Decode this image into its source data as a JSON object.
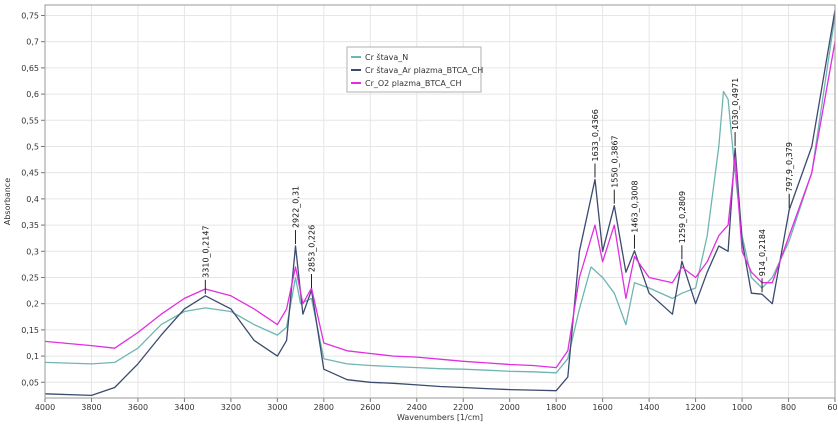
{
  "chart_data": {
    "type": "line",
    "xlabel": "Wavenumbers [1/cm]",
    "ylabel": "Absorbance",
    "xlim": [
      4000,
      600
    ],
    "ylim": [
      0.02,
      0.77
    ],
    "x_ticks": [
      "4000",
      "3800",
      "3600",
      "3400",
      "3200",
      "3000",
      "2800",
      "2600",
      "2400",
      "2200",
      "2000",
      "1800",
      "1600",
      "1400",
      "1200",
      "1000",
      "800",
      "600"
    ],
    "y_ticks": [
      "0,05",
      "0,1",
      "0,15",
      "0,2",
      "0,25",
      "0,3",
      "0,35",
      "0,4",
      "0,45",
      "0,5",
      "0,55",
      "0,6",
      "0,65",
      "0,7",
      "0,75"
    ],
    "legend_position": "top-center",
    "grid": true,
    "series": [
      {
        "name": "Cr štava_N",
        "color": "#6fb5b3",
        "points": [
          [
            4000,
            0.088
          ],
          [
            3800,
            0.085
          ],
          [
            3700,
            0.088
          ],
          [
            3600,
            0.115
          ],
          [
            3500,
            0.16
          ],
          [
            3400,
            0.185
          ],
          [
            3310,
            0.192
          ],
          [
            3200,
            0.185
          ],
          [
            3100,
            0.16
          ],
          [
            3000,
            0.14
          ],
          [
            2960,
            0.155
          ],
          [
            2922,
            0.25
          ],
          [
            2900,
            0.2
          ],
          [
            2853,
            0.21
          ],
          [
            2800,
            0.095
          ],
          [
            2700,
            0.085
          ],
          [
            2600,
            0.082
          ],
          [
            2500,
            0.08
          ],
          [
            2400,
            0.078
          ],
          [
            2300,
            0.076
          ],
          [
            2200,
            0.075
          ],
          [
            2100,
            0.073
          ],
          [
            2000,
            0.071
          ],
          [
            1900,
            0.07
          ],
          [
            1800,
            0.068
          ],
          [
            1750,
            0.095
          ],
          [
            1700,
            0.19
          ],
          [
            1650,
            0.27
          ],
          [
            1600,
            0.25
          ],
          [
            1550,
            0.22
          ],
          [
            1500,
            0.16
          ],
          [
            1463,
            0.24
          ],
          [
            1400,
            0.23
          ],
          [
            1300,
            0.21
          ],
          [
            1259,
            0.22
          ],
          [
            1200,
            0.23
          ],
          [
            1150,
            0.33
          ],
          [
            1100,
            0.5
          ],
          [
            1080,
            0.605
          ],
          [
            1060,
            0.59
          ],
          [
            1030,
            0.45
          ],
          [
            1000,
            0.33
          ],
          [
            960,
            0.25
          ],
          [
            914,
            0.23
          ],
          [
            870,
            0.25
          ],
          [
            797,
            0.32
          ],
          [
            700,
            0.45
          ],
          [
            600,
            0.75
          ]
        ]
      },
      {
        "name": "Cr štava_Ar plazma_BTCA_CH",
        "color": "#3b4a6e",
        "points": [
          [
            4000,
            0.028
          ],
          [
            3800,
            0.025
          ],
          [
            3700,
            0.04
          ],
          [
            3600,
            0.085
          ],
          [
            3500,
            0.14
          ],
          [
            3400,
            0.19
          ],
          [
            3310,
            0.215
          ],
          [
            3200,
            0.19
          ],
          [
            3100,
            0.13
          ],
          [
            3000,
            0.1
          ],
          [
            2960,
            0.13
          ],
          [
            2922,
            0.31
          ],
          [
            2890,
            0.18
          ],
          [
            2853,
            0.226
          ],
          [
            2800,
            0.075
          ],
          [
            2700,
            0.055
          ],
          [
            2600,
            0.05
          ],
          [
            2500,
            0.048
          ],
          [
            2400,
            0.045
          ],
          [
            2300,
            0.042
          ],
          [
            2200,
            0.04
          ],
          [
            2100,
            0.038
          ],
          [
            2000,
            0.036
          ],
          [
            1900,
            0.035
          ],
          [
            1800,
            0.034
          ],
          [
            1750,
            0.06
          ],
          [
            1700,
            0.3
          ],
          [
            1633,
            0.437
          ],
          [
            1600,
            0.3
          ],
          [
            1550,
            0.387
          ],
          [
            1500,
            0.26
          ],
          [
            1463,
            0.301
          ],
          [
            1400,
            0.22
          ],
          [
            1300,
            0.18
          ],
          [
            1259,
            0.281
          ],
          [
            1200,
            0.2
          ],
          [
            1150,
            0.26
          ],
          [
            1100,
            0.31
          ],
          [
            1060,
            0.3
          ],
          [
            1030,
            0.497
          ],
          [
            1000,
            0.32
          ],
          [
            960,
            0.22
          ],
          [
            914,
            0.218
          ],
          [
            870,
            0.2
          ],
          [
            797,
            0.379
          ],
          [
            700,
            0.5
          ],
          [
            600,
            0.76
          ]
        ]
      },
      {
        "name": "Cr_O2 plazma_BTCA_CH",
        "color": "#e02fe0",
        "points": [
          [
            4000,
            0.128
          ],
          [
            3800,
            0.12
          ],
          [
            3700,
            0.115
          ],
          [
            3600,
            0.145
          ],
          [
            3500,
            0.18
          ],
          [
            3400,
            0.21
          ],
          [
            3310,
            0.228
          ],
          [
            3200,
            0.215
          ],
          [
            3100,
            0.19
          ],
          [
            3000,
            0.16
          ],
          [
            2960,
            0.19
          ],
          [
            2922,
            0.27
          ],
          [
            2890,
            0.2
          ],
          [
            2853,
            0.23
          ],
          [
            2800,
            0.125
          ],
          [
            2700,
            0.11
          ],
          [
            2600,
            0.105
          ],
          [
            2500,
            0.1
          ],
          [
            2400,
            0.098
          ],
          [
            2300,
            0.094
          ],
          [
            2200,
            0.09
          ],
          [
            2100,
            0.087
          ],
          [
            2000,
            0.084
          ],
          [
            1900,
            0.082
          ],
          [
            1800,
            0.078
          ],
          [
            1750,
            0.11
          ],
          [
            1700,
            0.25
          ],
          [
            1633,
            0.35
          ],
          [
            1600,
            0.28
          ],
          [
            1550,
            0.35
          ],
          [
            1500,
            0.21
          ],
          [
            1463,
            0.29
          ],
          [
            1400,
            0.25
          ],
          [
            1300,
            0.24
          ],
          [
            1259,
            0.27
          ],
          [
            1200,
            0.25
          ],
          [
            1150,
            0.28
          ],
          [
            1100,
            0.33
          ],
          [
            1060,
            0.35
          ],
          [
            1030,
            0.48
          ],
          [
            1000,
            0.3
          ],
          [
            960,
            0.26
          ],
          [
            914,
            0.24
          ],
          [
            870,
            0.24
          ],
          [
            797,
            0.33
          ],
          [
            700,
            0.45
          ],
          [
            600,
            0.7
          ]
        ]
      }
    ],
    "annotations": [
      {
        "x": 3310,
        "y": 0.215,
        "text": "3310_0,2147"
      },
      {
        "x": 2922,
        "y": 0.31,
        "text": "2922_0,31"
      },
      {
        "x": 2853,
        "y": 0.226,
        "text": "2853_0,226"
      },
      {
        "x": 1633,
        "y": 0.437,
        "text": "1633_0,4366"
      },
      {
        "x": 1550,
        "y": 0.387,
        "text": "1550_0,3867"
      },
      {
        "x": 1463,
        "y": 0.301,
        "text": "1463_0,3008"
      },
      {
        "x": 1259,
        "y": 0.281,
        "text": "1259_0,2809"
      },
      {
        "x": 1030,
        "y": 0.497,
        "text": "1030_0,4971"
      },
      {
        "x": 914,
        "y": 0.218,
        "text": "914_0,2184"
      },
      {
        "x": 797,
        "y": 0.379,
        "text": "797,9_0,379"
      }
    ]
  }
}
